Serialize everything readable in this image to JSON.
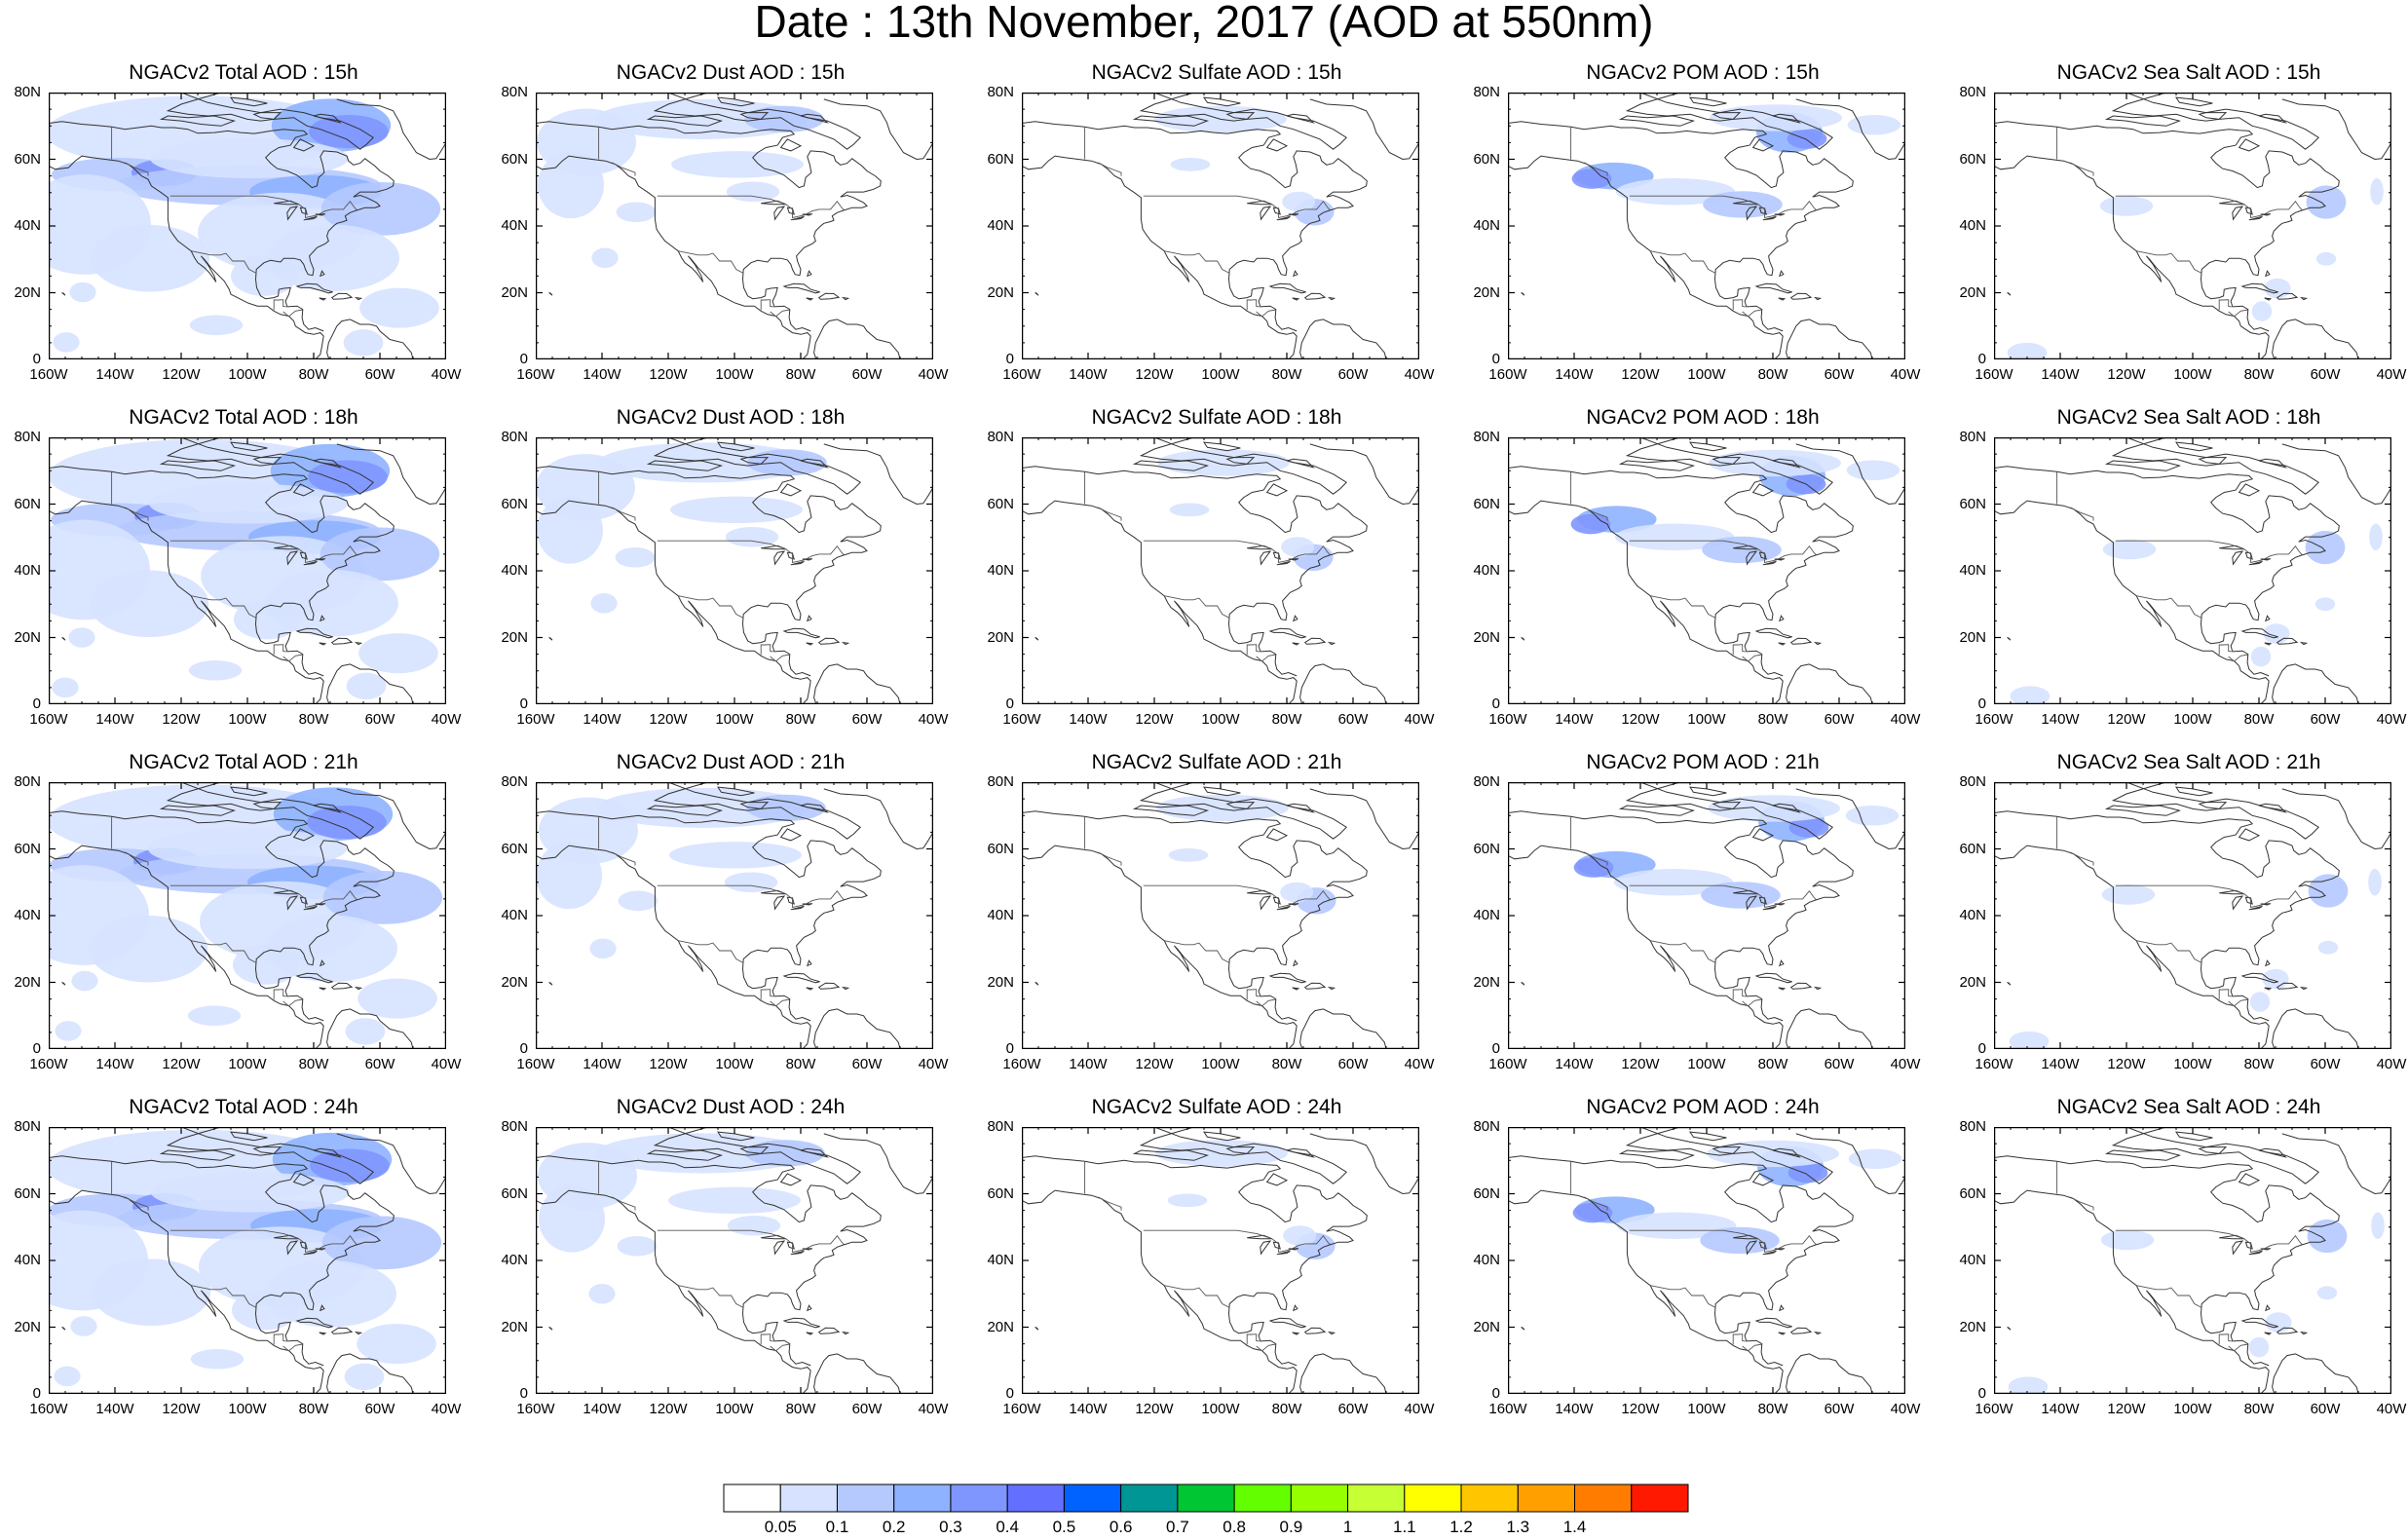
{
  "title": "Date : 13th November, 2017 (AOD at 550nm)",
  "rows": [
    "15h",
    "18h",
    "21h",
    "24h"
  ],
  "panels": [
    [
      "NGACv2 Total AOD : 15h",
      "NGACv2 Dust AOD : 15h",
      "NGACv2 Sulfate AOD : 15h",
      "NGACv2 POM AOD : 15h",
      "NGACv2 Sea Salt AOD : 15h"
    ],
    [
      "NGACv2 Total AOD : 18h",
      "NGACv2 Dust AOD : 18h",
      "NGACv2 Sulfate AOD : 18h",
      "NGACv2 POM AOD : 18h",
      "NGACv2 Sea Salt AOD : 18h"
    ],
    [
      "NGACv2 Total AOD : 21h",
      "NGACv2 Dust AOD : 21h",
      "NGACv2 Sulfate AOD : 21h",
      "NGACv2 POM AOD : 21h",
      "NGACv2 Sea Salt AOD : 21h"
    ],
    [
      "NGACv2 Total AOD : 24h",
      "NGACv2 Dust AOD : 24h",
      "NGACv2 Sulfate AOD : 24h",
      "NGACv2 POM AOD : 24h",
      "NGACv2 Sea Salt  AOD : 24h"
    ]
  ],
  "lat_labels": [
    "80N",
    "60N",
    "40N",
    "20N",
    "0"
  ],
  "lon_labels": [
    "160W",
    "140W",
    "120W",
    "100W",
    "80W",
    "60W",
    "40W"
  ],
  "colorbar": {
    "labels": [
      "0.05",
      "0.1",
      "0.2",
      "0.3",
      "0.4",
      "0.5",
      "0.6",
      "0.7",
      "0.8",
      "0.9",
      "1",
      "1.1",
      "1.2",
      "1.3",
      "1.4"
    ],
    "colors": [
      "#ffffff",
      "#d6e2ff",
      "#b5c9ff",
      "#8eb2ff",
      "#7f96ff",
      "#6370ff",
      "#0063ff",
      "#009696",
      "#00c633",
      "#63ff00",
      "#96ff00",
      "#c6ff33",
      "#ffff00",
      "#ffc600",
      "#ffa000",
      "#ff7c00",
      "#ff1900"
    ]
  },
  "colors": {
    "light": "#d6e2ff",
    "mid": "#b5c9ff",
    "strong": "#8eb2ff",
    "deep": "#7f96ff",
    "coast": "#333333"
  }
}
